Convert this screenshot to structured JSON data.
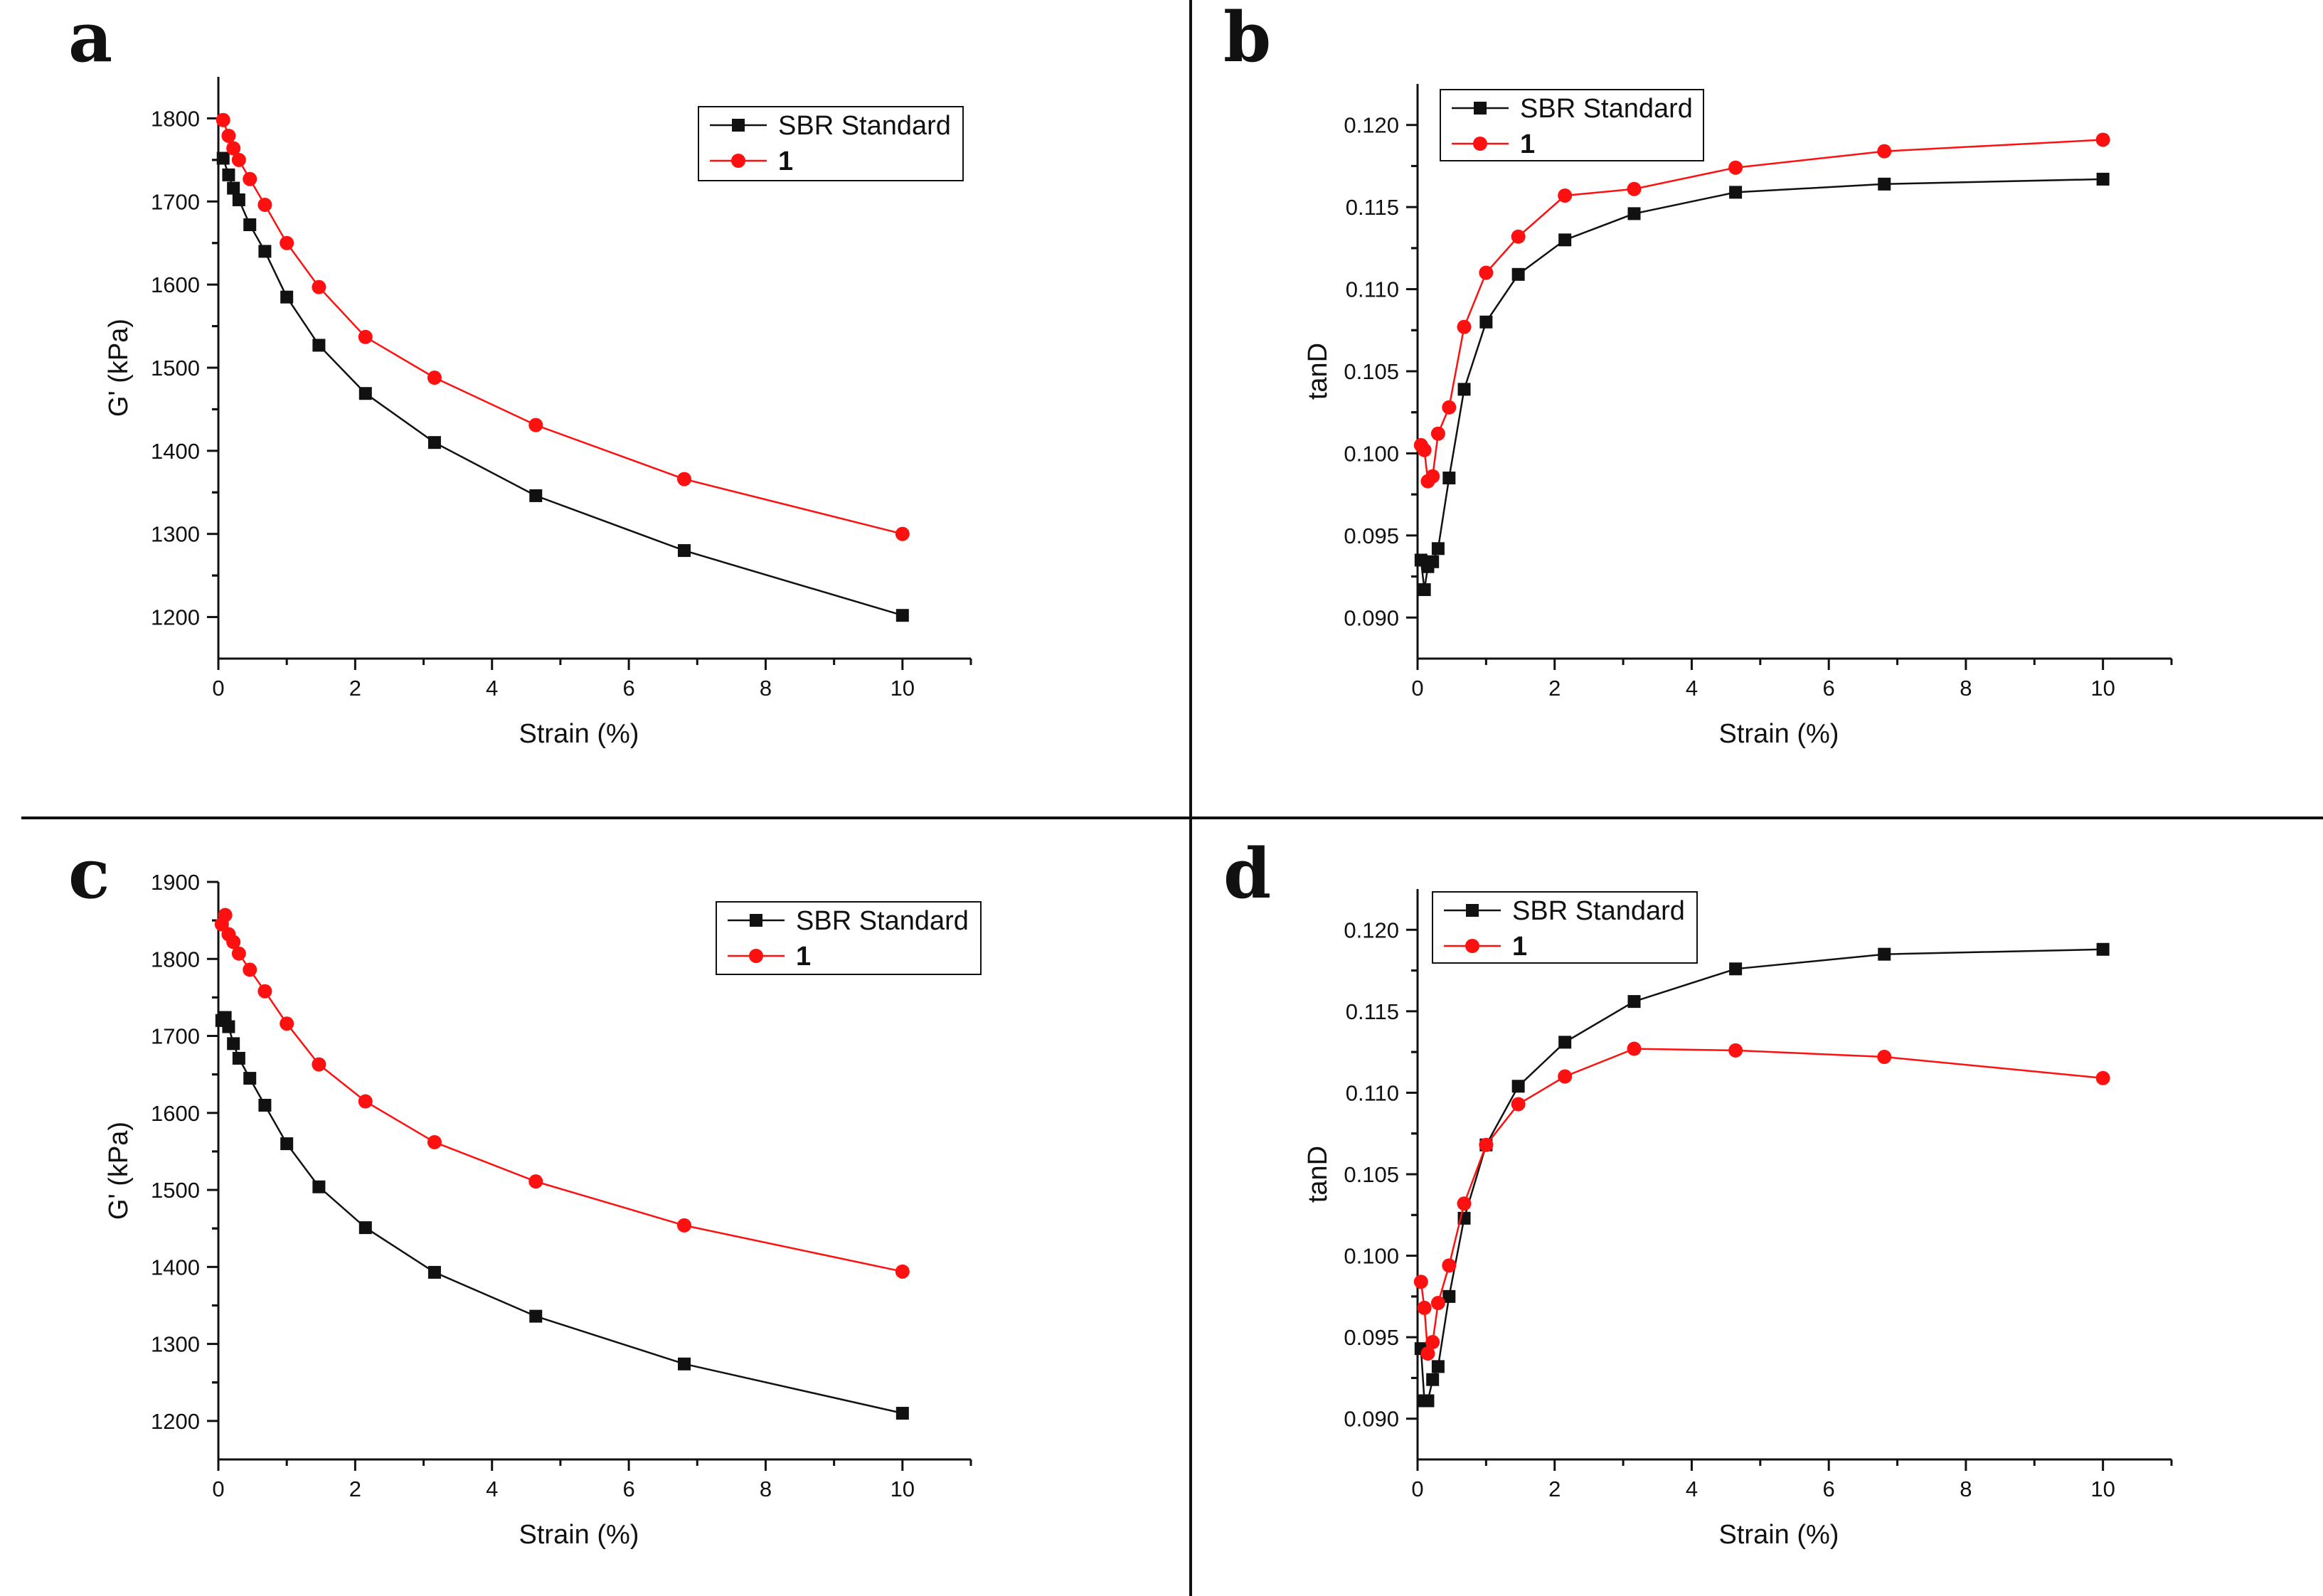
{
  "colors": {
    "series_black": "#111111",
    "series_red": "#ff1010",
    "axis": "#111111",
    "divider": "#111111"
  },
  "chart_data": [
    {
      "panel": "a",
      "type": "line",
      "title": "",
      "xlabel": "Strain (%)",
      "ylabel": "G' (kPa)",
      "xlim": [
        0,
        11
      ],
      "ylim": [
        1150,
        1850
      ],
      "x_ticks": [
        0,
        2,
        4,
        6,
        8,
        10
      ],
      "y_ticks": [
        1200,
        1300,
        1400,
        1500,
        1600,
        1700,
        1800
      ],
      "tick_decimals": 0,
      "legend_position": "top-right",
      "series": [
        {
          "name": "SBR Standard",
          "color": "#111111",
          "marker": "square",
          "x": [
            0.07,
            0.15,
            0.22,
            0.3,
            0.46,
            0.68,
            1.0,
            1.47,
            2.15,
            3.16,
            4.64,
            6.81,
            10.0
          ],
          "values": [
            1752,
            1732,
            1716,
            1702,
            1672,
            1640,
            1585,
            1527,
            1469,
            1410,
            1346,
            1280,
            1202
          ]
        },
        {
          "name": "1",
          "color": "#ff1010",
          "marker": "circle",
          "x": [
            0.07,
            0.15,
            0.22,
            0.3,
            0.46,
            0.68,
            1.0,
            1.47,
            2.15,
            3.16,
            4.64,
            6.81,
            10.0
          ],
          "values": [
            1798,
            1779,
            1764,
            1750,
            1727,
            1696,
            1650,
            1597,
            1537,
            1488,
            1431,
            1366,
            1300
          ]
        }
      ]
    },
    {
      "panel": "b",
      "type": "line",
      "title": "",
      "xlabel": "Strain (%)",
      "ylabel": "tanD",
      "xlim": [
        0,
        11
      ],
      "ylim": [
        0.0875,
        0.1225
      ],
      "x_ticks": [
        0,
        2,
        4,
        6,
        8,
        10
      ],
      "y_ticks": [
        0.09,
        0.095,
        0.1,
        0.105,
        0.11,
        0.115,
        0.12
      ],
      "tick_decimals": 3,
      "legend_position": "top-left",
      "series": [
        {
          "name": "SBR Standard",
          "color": "#111111",
          "marker": "square",
          "x": [
            0.05,
            0.1,
            0.15,
            0.22,
            0.3,
            0.46,
            0.68,
            1.0,
            1.47,
            2.15,
            3.16,
            4.64,
            6.81,
            10.0
          ],
          "values": [
            0.0935,
            0.0917,
            0.0931,
            0.0934,
            0.0942,
            0.0985,
            0.1039,
            0.108,
            0.1109,
            0.113,
            0.1146,
            0.1159,
            0.1164,
            0.1167
          ]
        },
        {
          "name": "1",
          "color": "#ff1010",
          "marker": "circle",
          "x": [
            0.05,
            0.1,
            0.15,
            0.22,
            0.3,
            0.46,
            0.68,
            1.0,
            1.47,
            2.15,
            3.16,
            4.64,
            6.81,
            10.0
          ],
          "values": [
            0.1005,
            0.1002,
            0.0983,
            0.0986,
            0.1012,
            0.1028,
            0.1077,
            0.111,
            0.1132,
            0.1157,
            0.1161,
            0.1174,
            0.1184,
            0.1191
          ]
        }
      ]
    },
    {
      "panel": "c",
      "type": "line",
      "title": "",
      "xlabel": "Strain (%)",
      "ylabel": "G' (kPa)",
      "xlim": [
        0,
        11
      ],
      "ylim": [
        1150,
        1900
      ],
      "x_ticks": [
        0,
        2,
        4,
        6,
        8,
        10
      ],
      "y_ticks": [
        1200,
        1300,
        1400,
        1500,
        1600,
        1700,
        1800,
        1900
      ],
      "tick_decimals": 0,
      "legend_position": "top-right",
      "series": [
        {
          "name": "SBR Standard",
          "color": "#111111",
          "marker": "square",
          "x": [
            0.05,
            0.1,
            0.15,
            0.22,
            0.3,
            0.46,
            0.68,
            1.0,
            1.47,
            2.15,
            3.16,
            4.64,
            6.81,
            10.0
          ],
          "values": [
            1720,
            1724,
            1712,
            1690,
            1671,
            1645,
            1610,
            1560,
            1504,
            1451,
            1393,
            1336,
            1274,
            1210
          ]
        },
        {
          "name": "1",
          "color": "#ff1010",
          "marker": "circle",
          "x": [
            0.05,
            0.1,
            0.15,
            0.22,
            0.3,
            0.46,
            0.68,
            1.0,
            1.47,
            2.15,
            3.16,
            4.64,
            6.81,
            10.0
          ],
          "values": [
            1845,
            1857,
            1832,
            1822,
            1807,
            1786,
            1758,
            1716,
            1663,
            1615,
            1562,
            1511,
            1454,
            1394
          ]
        }
      ]
    },
    {
      "panel": "d",
      "type": "line",
      "title": "",
      "xlabel": "Strain (%)",
      "ylabel": "tanD",
      "xlim": [
        0,
        11
      ],
      "ylim": [
        0.0875,
        0.1225
      ],
      "x_ticks": [
        0,
        2,
        4,
        6,
        8,
        10
      ],
      "y_ticks": [
        0.09,
        0.095,
        0.1,
        0.105,
        0.11,
        0.115,
        0.12
      ],
      "tick_decimals": 3,
      "legend_position": "top-left",
      "series": [
        {
          "name": "SBR Standard",
          "color": "#111111",
          "marker": "square",
          "x": [
            0.05,
            0.1,
            0.15,
            0.22,
            0.3,
            0.46,
            0.68,
            1.0,
            1.47,
            2.15,
            3.16,
            4.64,
            6.81,
            10.0
          ],
          "values": [
            0.0943,
            0.0911,
            0.0911,
            0.0924,
            0.0932,
            0.0975,
            0.1023,
            0.1068,
            0.1104,
            0.1131,
            0.1156,
            0.1176,
            0.1185,
            0.1188
          ]
        },
        {
          "name": "1",
          "color": "#ff1010",
          "marker": "circle",
          "x": [
            0.05,
            0.1,
            0.15,
            0.22,
            0.3,
            0.46,
            0.68,
            1.0,
            1.47,
            2.15,
            3.16,
            4.64,
            6.81,
            10.0
          ],
          "values": [
            0.0984,
            0.0968,
            0.094,
            0.0947,
            0.0971,
            0.0994,
            0.1032,
            0.1068,
            0.1093,
            0.111,
            0.1127,
            0.1126,
            0.1122,
            0.1109
          ]
        }
      ]
    }
  ]
}
